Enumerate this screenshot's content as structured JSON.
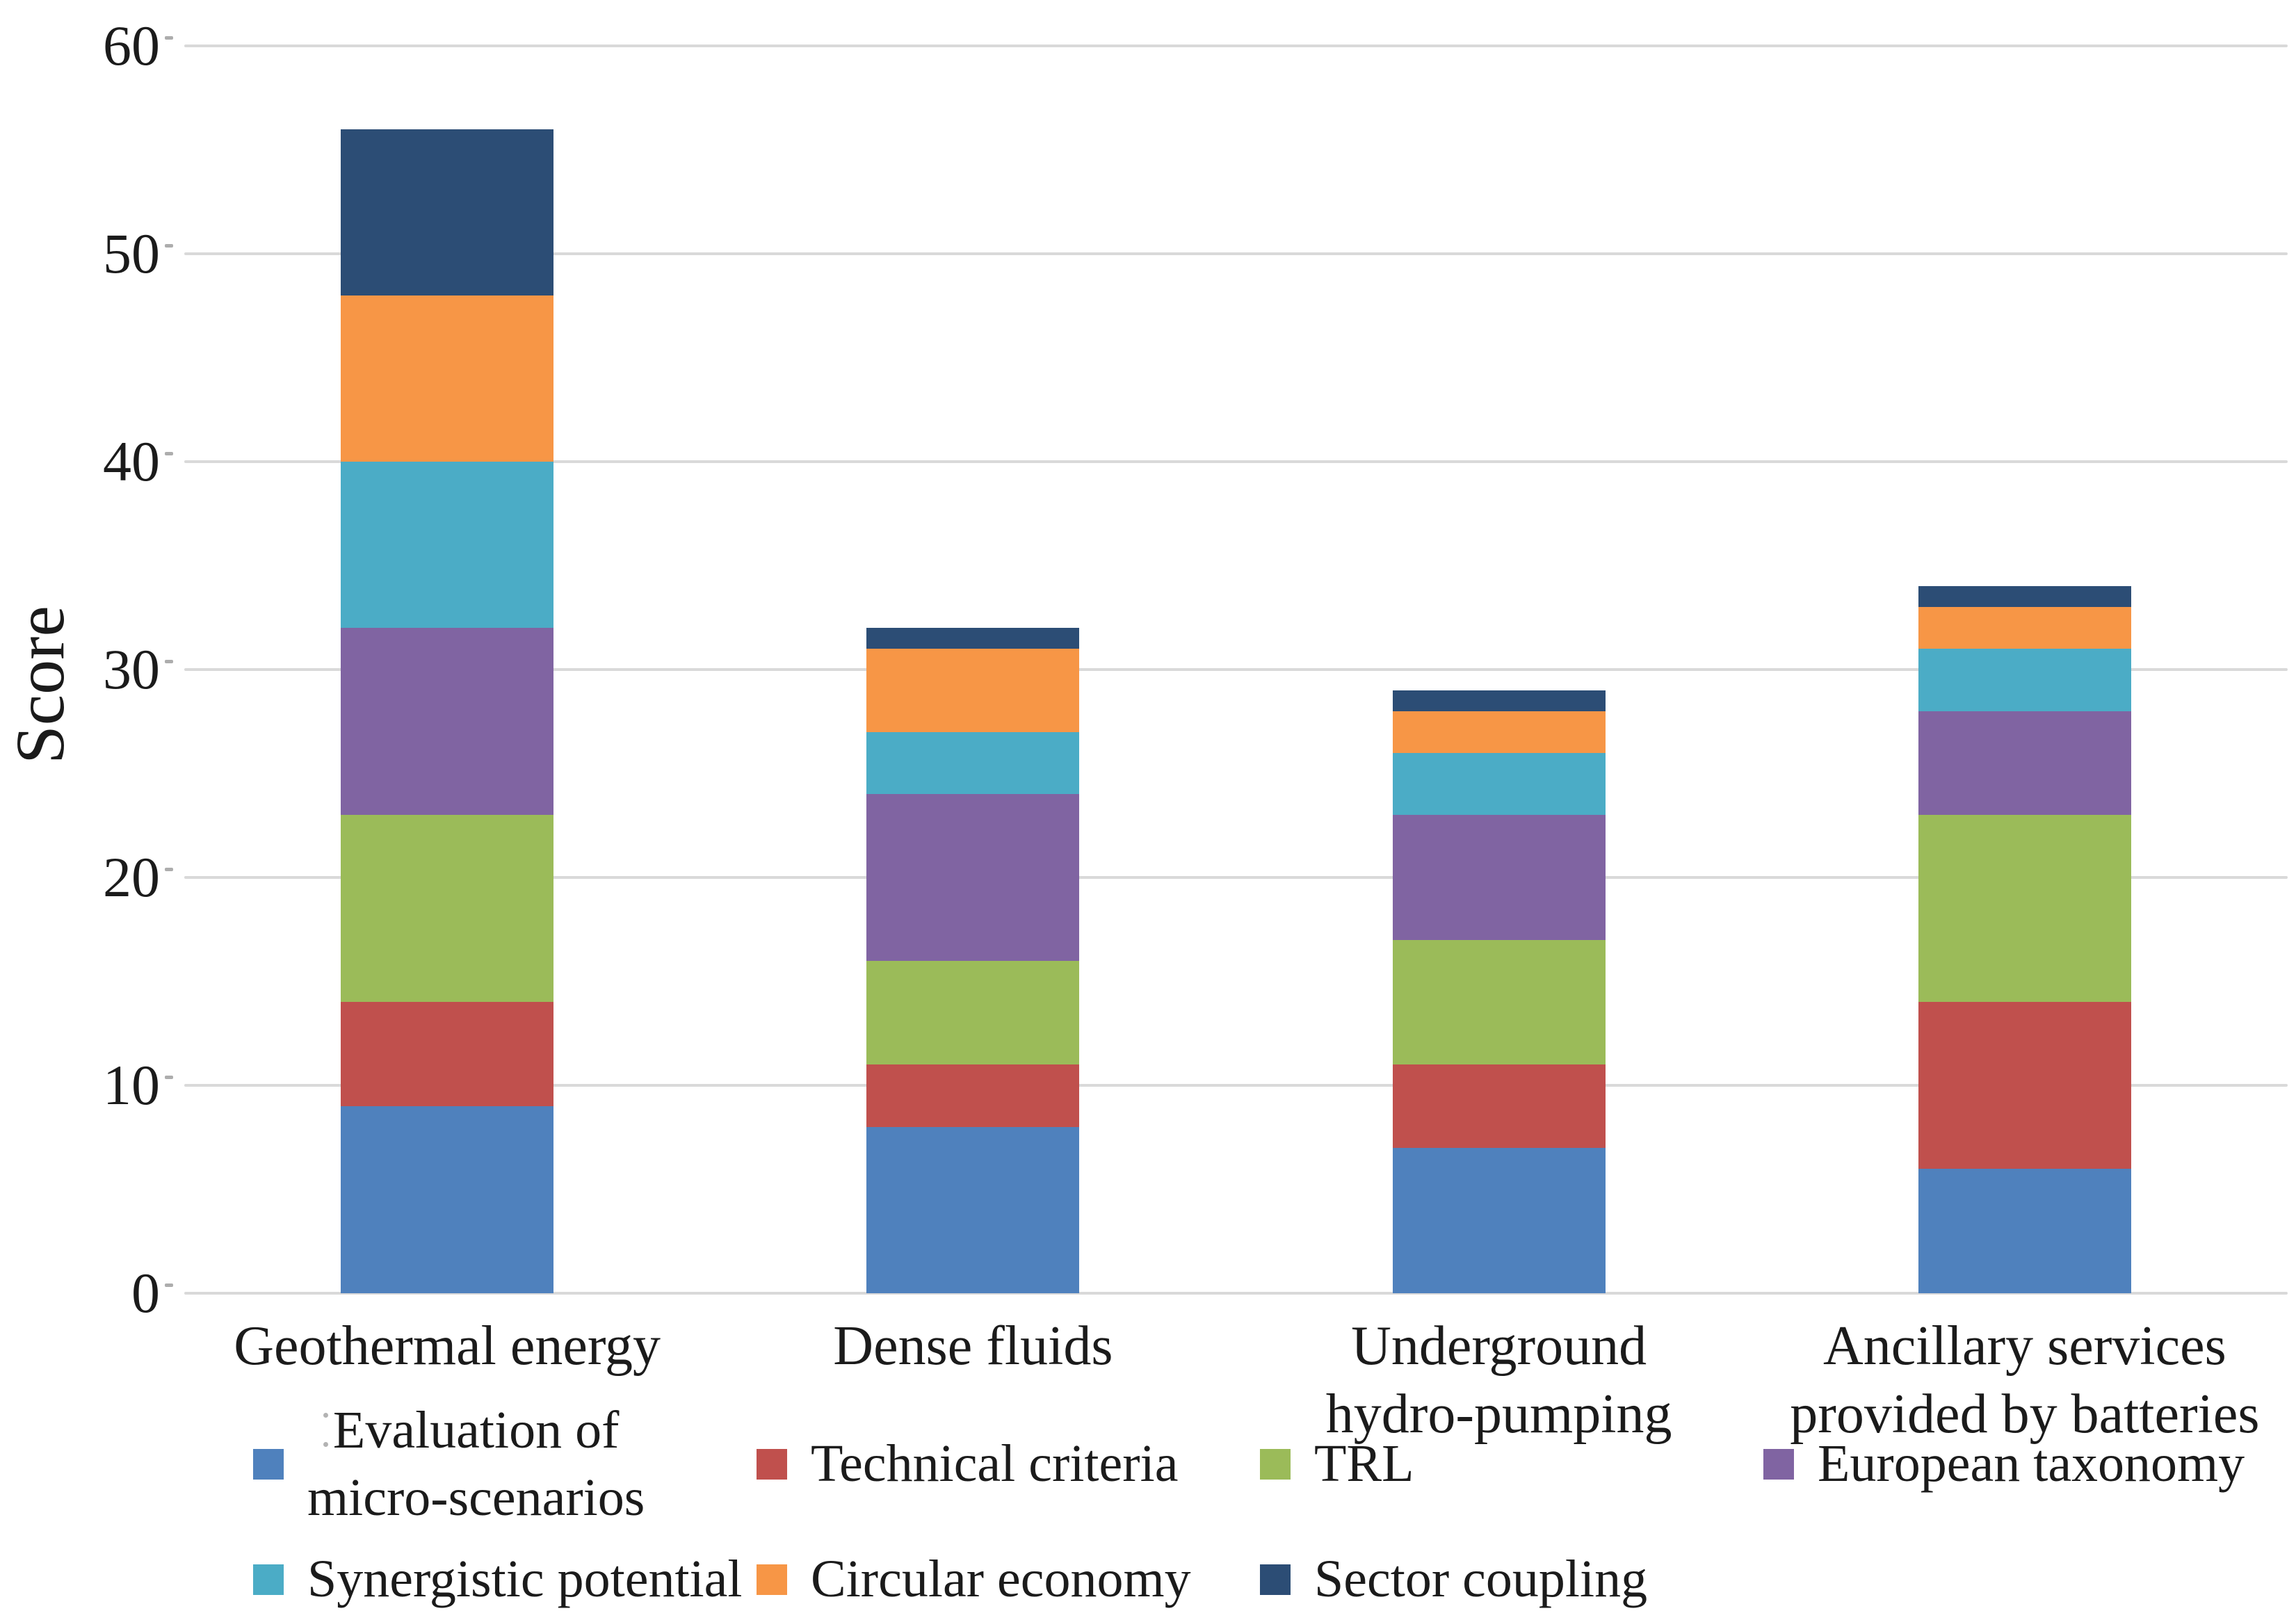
{
  "figure": {
    "background": "#FFFFFF",
    "text_color": "#1B1B1B",
    "gridline_color": "#D9D9D9",
    "tick_color": "#ADADAD"
  },
  "y_axis": {
    "title": "Score",
    "ticks": [
      "0",
      "10",
      "20",
      "30",
      "40",
      "50",
      "60"
    ]
  },
  "chart_data": {
    "type": "bar",
    "stacked": true,
    "orientation": "vertical",
    "title": "",
    "xlabel": "",
    "ylabel": "Score",
    "ylim": [
      0,
      60
    ],
    "ytick_interval": 10,
    "grid": "horizontal",
    "legend_position": "bottom",
    "categories": [
      "Geothermal energy",
      "Dense fluids",
      "Underground\nhydro-pumping",
      "Ancillary services\nprovided by batteries"
    ],
    "series": [
      {
        "name": "Evaluation of micro-scenarios",
        "legend_label": "Evaluation of\nmicro-scenarios",
        "color": "#4F81BD",
        "values": [
          9,
          8,
          7,
          6
        ]
      },
      {
        "name": "Technical criteria",
        "legend_label": "Technical criteria",
        "color": "#C0504D",
        "values": [
          5,
          3,
          4,
          8
        ]
      },
      {
        "name": "TRL",
        "legend_label": "TRL",
        "color": "#9BBB59",
        "values": [
          9,
          5,
          6,
          9
        ]
      },
      {
        "name": "European taxonomy",
        "legend_label": "European taxonomy",
        "color": "#8064A2",
        "values": [
          9,
          8,
          6,
          5
        ]
      },
      {
        "name": "Synergistic potential",
        "legend_label": "Synergistic potential",
        "color": "#4BACC6",
        "values": [
          8,
          3,
          3,
          3
        ]
      },
      {
        "name": "Circular economy",
        "legend_label": "Circular economy",
        "color": "#F79646",
        "values": [
          8,
          4,
          2,
          2
        ]
      },
      {
        "name": "Sector coupling",
        "legend_label": "Sector coupling",
        "color": "#2C4D75",
        "values": [
          8,
          1,
          1,
          1
        ]
      }
    ],
    "stack_totals": [
      56,
      32,
      29,
      34
    ]
  },
  "legend": {
    "rows": [
      [
        0,
        1,
        2,
        3
      ],
      [
        4,
        5,
        6
      ]
    ]
  }
}
